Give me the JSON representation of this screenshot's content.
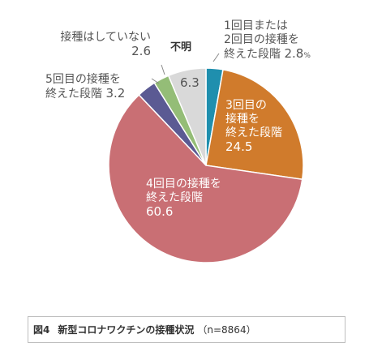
{
  "chart_data": {
    "type": "pie",
    "start_angle_deg": 0,
    "direction": "clockwise",
    "slices": [
      {
        "label_lines": [
          "1回目または",
          "2回目の接種を",
          "終えた段階"
        ],
        "value": 2.8,
        "value_text": "2.8",
        "unit": "%",
        "color": "#1f8fae"
      },
      {
        "label_lines": [
          "3回目の",
          "接種を",
          "終えた段階"
        ],
        "value": 24.5,
        "value_text": "24.5",
        "unit": "",
        "color": "#d07b2c"
      },
      {
        "label_lines": [
          "4回目の接種を",
          "終えた段階"
        ],
        "value": 60.6,
        "value_text": "60.6",
        "unit": "",
        "color": "#c96f74"
      },
      {
        "label_lines": [
          "5回目の接種を",
          "終えた段階"
        ],
        "value": 3.2,
        "value_text": "3.2",
        "unit": "",
        "color": "#5b5a93"
      },
      {
        "label_lines": [
          "接種はしていない"
        ],
        "value": 2.6,
        "value_text": "2.6",
        "unit": "",
        "color": "#94bd77"
      },
      {
        "label_lines": [
          "不明"
        ],
        "value": 6.3,
        "value_text": "6.3",
        "unit": "",
        "color": "#d9d9d9"
      }
    ]
  },
  "caption": {
    "figure": "図4",
    "title": "新型コロナワクチンの接種状況",
    "n": "（n=8864）"
  }
}
